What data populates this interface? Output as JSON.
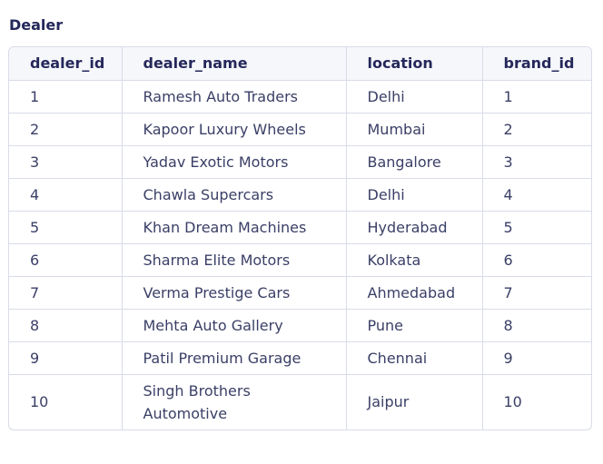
{
  "table": {
    "title": "Dealer",
    "columns": [
      "dealer_id",
      "dealer_name",
      "location",
      "brand_id"
    ],
    "rows": [
      [
        "1",
        "Ramesh Auto Traders",
        "Delhi",
        "1"
      ],
      [
        "2",
        "Kapoor Luxury Wheels",
        "Mumbai",
        "2"
      ],
      [
        "3",
        "Yadav Exotic Motors",
        "Bangalore",
        "3"
      ],
      [
        "4",
        "Chawla Supercars",
        "Delhi",
        "4"
      ],
      [
        "5",
        "Khan Dream Machines",
        "Hyderabad",
        "5"
      ],
      [
        "6",
        "Sharma Elite Motors",
        "Kolkata",
        "6"
      ],
      [
        "7",
        "Verma Prestige Cars",
        "Ahmedabad",
        "7"
      ],
      [
        "8",
        "Mehta Auto Gallery",
        "Pune",
        "8"
      ],
      [
        "9",
        "Patil Premium Garage",
        "Chennai",
        "9"
      ],
      [
        "10",
        "Singh Brothers Automotive",
        "Jaipur",
        "10"
      ]
    ]
  }
}
